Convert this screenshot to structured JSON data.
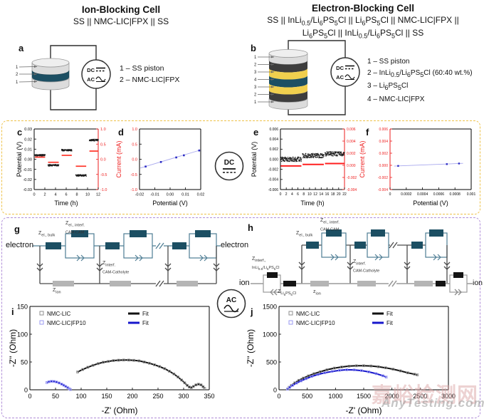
{
  "header": {
    "left_title": "Ion-Blocking Cell",
    "left_subtitle": "SS || NMC-LIC|FPX || SS",
    "right_title": "Electron-Blocking Cell",
    "right_subtitle_html": "SS || InLi<sub>0.5</sub>/Li<sub>6</sub>PS<sub>5</sub>Cl || Li<sub>6</sub>PS<sub>5</sub>Cl || NMC-LIC|FPX ||<br>Li<sub>6</sub>PS<sub>5</sub>Cl || InLi<sub>0.5</sub>/Li<sub>6</sub>PS<sub>5</sub>Cl || SS"
  },
  "panels": {
    "a": "a",
    "b": "b",
    "c": "c",
    "d": "d",
    "e": "e",
    "f": "f",
    "g": "g",
    "h": "h",
    "i": "i",
    "j": "j"
  },
  "symbols": {
    "dc": "DC",
    "ac": "AC"
  },
  "panel_a": {
    "legend": [
      "1 – SS piston",
      "2 – NMC-LIC|FPX"
    ]
  },
  "panel_b": {
    "legend": [
      "1 – SS piston",
      "2 – InLi<sub>0.5</sub>/Li<sub>6</sub>PS<sub>5</sub>Cl (60:40 wt.%)",
      "3 – Li<sub>6</sub>PS<sub>5</sub>Cl",
      "4 – NMC-LIC|FPX"
    ]
  },
  "circuits": {
    "g": {
      "left_terminal": "electron",
      "right_terminal": "electron",
      "z_el_bulk": "Z<sub>el., bulk</sub>",
      "z_el_interf": "Z<sub>el., interf.<br>CAM-CAM</sub>",
      "z_interf_cc": "Z<sub>interf.<br>CAM-Catholyte</sub>",
      "z_ion": "Z<sub>ion</sub>"
    },
    "h": {
      "left_terminal": "ion",
      "right_terminal": "ion",
      "z_interf_inli": "Z<sub>interf.,<br>InLi<sub>0.5</sub>/Li<sub>6</sub>PS<sub>5</sub>Cl</sub>",
      "z_lps": "Z<sub>Li<sub>6</sub>PS<sub>5</sub>Cl</sub>",
      "z_ion": "z<sub>ion</sub>",
      "z_el_bulk": "Z<sub>el., bulk</sub>",
      "z_el_interf": "Z<sub>el., interf.<br>CAM-CAM</sub>",
      "z_interf_cc": "Z<sub>interf.<br>CAM-Catholyte</sub>"
    }
  },
  "watermark": {
    "cn": "嘉峪检测网",
    "en": "AnyTesting.com"
  },
  "chart_data": [
    {
      "id": "c",
      "type": "line",
      "xlabel": "Time (h)",
      "xlim": [
        0,
        12
      ],
      "xticks": [
        "0",
        "2",
        "4",
        "6",
        "8",
        "10",
        "12"
      ],
      "ylabel_left": "Potential (V)",
      "ylim_left": [
        -0.03,
        0.03
      ],
      "yticks_left": [
        "0.03",
        "0.02",
        "0.01",
        "0.00",
        "-0.01",
        "-0.02",
        "-0.03"
      ],
      "ylim_right": [
        -1.0,
        1.0
      ],
      "yticks_right": [
        "1.0",
        "0.5",
        "0.0",
        "-0.5",
        "-1.0"
      ],
      "right_spine": "#ee1c1c",
      "ytick_right_color": "#ee1c1c",
      "margins": {
        "l": 28,
        "r": 24,
        "t": 5,
        "b": 26
      },
      "tick_font": 5.5,
      "label_font": 9,
      "series": [
        {
          "name": "potential-steps",
          "type": "steps",
          "axis": "left",
          "color": "#1a1a1a",
          "noise": 0.0008,
          "dot": 1.3,
          "dense": 380,
          "segments": [
            [
              0.15,
              2.05,
              0.004
            ],
            [
              2.6,
              4.6,
              -0.006
            ],
            [
              5.15,
              7.05,
              0.009
            ],
            [
              7.8,
              9.75,
              -0.016
            ],
            [
              10.35,
              12,
              0.019
            ]
          ]
        },
        {
          "name": "current-steps",
          "type": "steps",
          "axis": "right",
          "color": "#ff3226",
          "width": 1.7,
          "segments": [
            [
              0.15,
              2.05,
              0.07
            ],
            [
              2.6,
              4.6,
              -0.1
            ],
            [
              5.15,
              7.05,
              0.13
            ],
            [
              7.8,
              9.75,
              -0.23
            ],
            [
              10.35,
              12,
              0.27
            ]
          ]
        }
      ]
    },
    {
      "id": "d",
      "type": "scatter",
      "xlabel": "Potential (V)",
      "xlim": [
        -0.02,
        0.02
      ],
      "xticks": [
        "-0.02",
        "-0.01",
        "0.00",
        "0.01",
        "0.02"
      ],
      "ylabel_left": "Current (mA)",
      "ylabel_left_color": "#ee1c1c",
      "ylim_left": [
        -1.0,
        1.0
      ],
      "yticks_left": [
        "1.0",
        "0.5",
        "0.0",
        "-0.5",
        "-1.0"
      ],
      "ytick_left_color": "#ee1c1c",
      "margins": {
        "l": 36,
        "r": 6,
        "t": 5,
        "b": 26
      },
      "tick_font": 5.5,
      "label_font": 9,
      "series": [
        {
          "name": "iv-points",
          "type": "scatter",
          "color": "#2b2bc4",
          "marker": 2.6,
          "fit_color": "#a8a8ee",
          "fit": [
            [
              -0.0195,
              -0.29
            ],
            [
              0.0195,
              0.3
            ]
          ],
          "points": [
            [
              -0.016,
              -0.24
            ],
            [
              -0.006,
              -0.09
            ],
            [
              0.004,
              0.06
            ],
            [
              0.009,
              0.13
            ],
            [
              0.019,
              0.29
            ]
          ]
        }
      ]
    },
    {
      "id": "e",
      "type": "line",
      "xlabel": "Time (h)",
      "xlim": [
        0,
        22
      ],
      "xticks": [
        "0",
        "2",
        "4",
        "6",
        "8",
        "10",
        "12",
        "14",
        "16",
        "18",
        "20",
        "22"
      ],
      "ylabel_left": "Potential (V)",
      "ylim_left": [
        -0.006,
        0.006
      ],
      "yticks_left": [
        "0.006",
        "0.004",
        "0.002",
        "0.000",
        "-0.002",
        "-0.004",
        "-0.006"
      ],
      "ylim_right": [
        -0.004,
        0.006
      ],
      "yticks_right": [
        "0.006",
        "0.004",
        "0.002",
        "0.000",
        "-0.002",
        "-0.004"
      ],
      "right_spine": "#ee1c1c",
      "ytick_right_color": "#ee1c1c",
      "margins": {
        "l": 44,
        "r": 18,
        "t": 5,
        "b": 26
      },
      "tick_font": 5,
      "label_font": 9,
      "series": [
        {
          "name": "potential-band",
          "type": "steps",
          "axis": "left",
          "color": "#1a1a1a",
          "noise": 0.00045,
          "dot": 1.2,
          "dense": 420,
          "segments": [
            [
              0.1,
              7.2,
              0.0
            ],
            [
              7.6,
              14.9,
              0.0007
            ],
            [
              15.3,
              22,
              0.0011
            ]
          ]
        },
        {
          "name": "current-steps",
          "type": "steps",
          "axis": "right",
          "color": "#ff1f1f",
          "width": 2,
          "segments": [
            [
              0.1,
              7.2,
              -0.0001
            ],
            [
              7.6,
              14.9,
              0.00015
            ],
            [
              15.3,
              22,
              0.0003
            ]
          ]
        }
      ]
    },
    {
      "id": "f",
      "type": "scatter",
      "xlabel": "Potential (V)",
      "xlim": [
        0,
        0.001
      ],
      "xticks": [
        "0",
        "0.0002",
        "0.0004",
        "0.0006",
        "0.0008",
        "0.001"
      ],
      "ylabel_left": "Current (mA)",
      "ylabel_left_color": "#ee1c1c",
      "left_spine": "#ee1c1c",
      "ylim_left": [
        -0.004,
        0.006
      ],
      "yticks_left": [
        "0.006",
        "0.004",
        "0.002",
        "0.000",
        "-0.002",
        "-0.004"
      ],
      "ytick_left_color": "#ee1c1c",
      "margins": {
        "l": 46,
        "r": 16,
        "t": 5,
        "b": 26
      },
      "tick_font": 5,
      "label_font": 9,
      "series": [
        {
          "name": "iv-points",
          "type": "scatter",
          "color": "#2b2bc4",
          "marker": 2.4,
          "fit_color": "#a8a8ee",
          "fit": [
            [
              5e-05,
              -0.00013
            ],
            [
              0.0009,
              0.00033
            ]
          ],
          "points": [
            [
              0.0001,
              -0.0001
            ],
            [
              0.0007,
              0.0002
            ],
            [
              0.00085,
              0.0003
            ]
          ]
        }
      ]
    },
    {
      "id": "i",
      "type": "nyquist",
      "xlabel": "-Z' (Ohm)",
      "xlim": [
        0,
        350
      ],
      "xticks": [
        "0",
        "50",
        "100",
        "150",
        "200",
        "250",
        "300",
        "350"
      ],
      "ylabel_left": "-Z'' (Ohm)",
      "ylim_left": [
        0,
        150
      ],
      "yticks_left": [
        "0",
        "50",
        "100",
        "150"
      ],
      "margins": {
        "l": 32,
        "r": 16,
        "t": 6,
        "b": 37
      },
      "tick_font": 9,
      "label_font": 12,
      "legend": [
        {
          "label": "NMC-LIC",
          "marker": "square",
          "color": "#8f8f8f"
        },
        {
          "label": "NMC-LIC|FP10",
          "marker": "square",
          "color": "#9a9af2"
        },
        {
          "label": "Fit",
          "marker": "line",
          "color": "#111111"
        },
        {
          "label": "Fit",
          "marker": "line",
          "color": "#1717cc"
        }
      ],
      "series": [
        {
          "name": "NMC-LIC",
          "type": "curve",
          "marker_color": "#8f8f8f",
          "fit_color": "#111111",
          "points": [
            [
              93,
              32
            ],
            [
              103,
              36.5
            ],
            [
              113,
              40.5
            ],
            [
              123,
              44
            ],
            [
              133,
              47
            ],
            [
              143,
              49.5
            ],
            [
              153,
              51
            ],
            [
              163,
              52.5
            ],
            [
              173,
              53.2
            ],
            [
              183,
              53.5
            ],
            [
              193,
              53.4
            ],
            [
              203,
              53
            ],
            [
              213,
              52
            ],
            [
              223,
              50
            ],
            [
              233,
              47.8
            ],
            [
              243,
              45
            ],
            [
              253,
              41.8
            ],
            [
              263,
              38
            ],
            [
              272,
              33.5
            ],
            [
              281,
              28.5
            ],
            [
              289,
              23
            ],
            [
              296,
              17.5
            ],
            [
              302,
              12.5
            ],
            [
              307,
              8
            ],
            [
              311,
              5
            ],
            [
              315,
              4
            ],
            [
              319,
              6
            ],
            [
              324,
              8.8
            ],
            [
              329,
              10
            ],
            [
              334,
              8.8
            ],
            [
              338,
              5.5
            ],
            [
              341,
              2.5
            ]
          ]
        },
        {
          "name": "NMC-LIC|FP10",
          "type": "curve",
          "marker_color": "#9a9af2",
          "fit_color": "#1717cc",
          "points": [
            [
              33,
              13
            ],
            [
              37,
              14.5
            ],
            [
              42,
              15.2
            ],
            [
              47,
              15
            ],
            [
              52,
              14
            ],
            [
              57,
              12.3
            ],
            [
              62,
              10.2
            ],
            [
              66,
              8.2
            ],
            [
              70,
              6
            ],
            [
              74,
              3.8
            ],
            [
              77,
              1.8
            ],
            [
              79,
              0.5
            ]
          ]
        }
      ]
    },
    {
      "id": "j",
      "type": "nyquist",
      "xlabel": "-Z' (Ohm)",
      "xlim": [
        0,
        3000
      ],
      "xticks": [
        "0",
        "500",
        "1000",
        "1500",
        "2000",
        "2500",
        "3000"
      ],
      "ylabel_left": "-Z'' (Ohm)",
      "ylim_left": [
        0,
        1500
      ],
      "yticks_left": [
        "0",
        "500",
        "1000",
        "1500"
      ],
      "margins": {
        "l": 48,
        "r": 30,
        "t": 6,
        "b": 37
      },
      "tick_font": 9,
      "label_font": 12,
      "legend": [
        {
          "label": "NMC-LIC",
          "marker": "square",
          "color": "#8f8f8f"
        },
        {
          "label": "NMC-LIC|FP10",
          "marker": "square",
          "color": "#9a9af2"
        },
        {
          "label": "Fit",
          "marker": "line",
          "color": "#111111"
        },
        {
          "label": "Fit",
          "marker": "line",
          "color": "#1717cc"
        }
      ],
      "series": [
        {
          "name": "NMC-LIC",
          "type": "curve",
          "marker_color": "#8f8f8f",
          "fit_color": "#111111",
          "points": [
            [
              150,
              15
            ],
            [
              180,
              45
            ],
            [
              220,
              80
            ],
            [
              280,
              125
            ],
            [
              350,
              170
            ],
            [
              430,
              210
            ],
            [
              520,
              250
            ],
            [
              620,
              290
            ],
            [
              730,
              325
            ],
            [
              850,
              360
            ],
            [
              980,
              390
            ],
            [
              1110,
              410
            ],
            [
              1240,
              425
            ],
            [
              1370,
              432
            ],
            [
              1500,
              433
            ],
            [
              1630,
              428
            ],
            [
              1760,
              415
            ],
            [
              1890,
              395
            ],
            [
              2020,
              370
            ],
            [
              2150,
              340
            ],
            [
              2280,
              305
            ],
            [
              2400,
              280
            ],
            [
              2450,
              268
            ]
          ]
        },
        {
          "name": "NMC-LIC|FP10",
          "type": "curve",
          "marker_color": "#9a9af2",
          "fit_color": "#1717cc",
          "points": [
            [
              150,
              12
            ],
            [
              190,
              45
            ],
            [
              240,
              80
            ],
            [
              310,
              120
            ],
            [
              390,
              160
            ],
            [
              480,
              200
            ],
            [
              580,
              240
            ],
            [
              690,
              275
            ],
            [
              810,
              305
            ],
            [
              940,
              330
            ],
            [
              1070,
              350
            ],
            [
              1200,
              360
            ],
            [
              1330,
              358
            ],
            [
              1460,
              345
            ],
            [
              1590,
              322
            ],
            [
              1720,
              290
            ],
            [
              1840,
              252
            ],
            [
              1900,
              228
            ]
          ]
        }
      ]
    }
  ]
}
